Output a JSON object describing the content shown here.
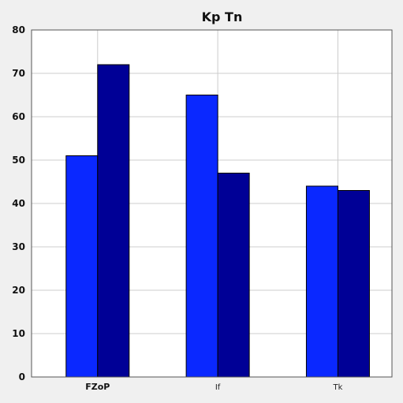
{
  "chart_data": {
    "type": "bar",
    "title": "Kp Tn",
    "xlabel": "",
    "ylabel": "",
    "categories": [
      "FZoP",
      "If",
      "Tk"
    ],
    "series": [
      {
        "values": [
          51,
          65,
          44
        ],
        "color": "#0a28ff"
      },
      {
        "values": [
          72,
          47,
          43
        ],
        "color": "#000096"
      }
    ],
    "ylim": [
      0,
      80
    ],
    "yticks": [
      0,
      10,
      20,
      30,
      40,
      50,
      60,
      70,
      80
    ],
    "grid": true,
    "legend": "none",
    "colors": {
      "background": "#f0f0f0",
      "plot_background": "#ffffff",
      "grid": "#cccccc",
      "bar_edge": "#000000"
    }
  }
}
